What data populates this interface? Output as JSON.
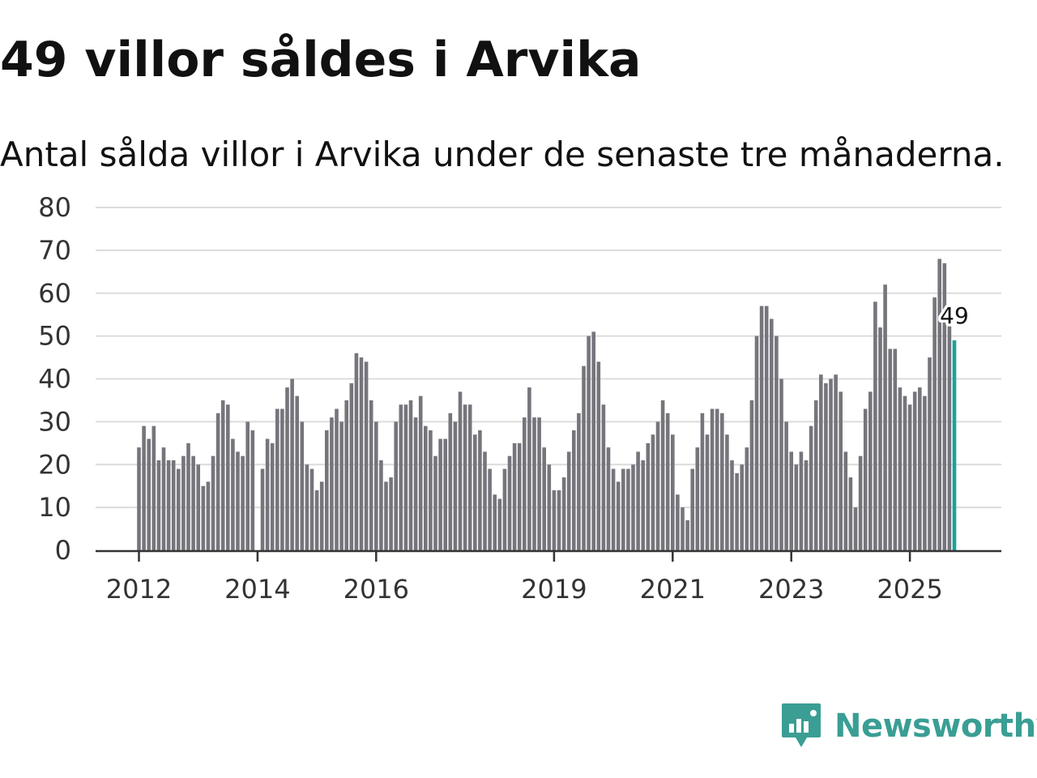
{
  "header": {
    "title": "49 villor såldes i Arvika",
    "subtitle": "Antal sålda villor i Arvika under de senaste tre månaderna."
  },
  "brand": {
    "name": "Newsworthy",
    "icon": "newsworthy-logo-icon",
    "color": "#3a9e94"
  },
  "colors": {
    "bar": "#76757c",
    "highlight": "#1aa39a",
    "grid": "#dcdcdc",
    "axis": "#333333"
  },
  "chart_data": {
    "type": "bar",
    "title": "49 villor såldes i Arvika",
    "subtitle": "Antal sålda villor i Arvika under de senaste tre månaderna.",
    "xlabel": "",
    "ylabel": "",
    "ylim": [
      0,
      80
    ],
    "yticks": [
      "0",
      "10",
      "20",
      "30",
      "40",
      "50",
      "60",
      "70",
      "80"
    ],
    "xticks": [
      "2012",
      "2014",
      "2016",
      "2019",
      "2021",
      "2023",
      "2025"
    ],
    "xtick_indices": [
      0,
      24,
      48,
      84,
      108,
      132,
      156
    ],
    "grid": true,
    "start": "2012-01",
    "frequency": "monthly",
    "values": [
      24,
      29,
      26,
      29,
      21,
      24,
      21,
      21,
      19,
      22,
      25,
      22,
      20,
      15,
      16,
      22,
      32,
      35,
      34,
      26,
      23,
      22,
      30,
      28,
      0,
      19,
      26,
      25,
      33,
      33,
      38,
      40,
      36,
      30,
      20,
      19,
      14,
      16,
      28,
      31,
      33,
      30,
      35,
      39,
      46,
      45,
      44,
      35,
      30,
      21,
      16,
      17,
      30,
      34,
      34,
      35,
      31,
      36,
      29,
      28,
      22,
      26,
      26,
      32,
      30,
      37,
      34,
      34,
      27,
      28,
      23,
      19,
      13,
      12,
      19,
      22,
      25,
      25,
      31,
      38,
      31,
      31,
      24,
      20,
      14,
      14,
      17,
      23,
      28,
      32,
      43,
      50,
      51,
      44,
      34,
      24,
      19,
      16,
      19,
      19,
      20,
      23,
      21,
      25,
      27,
      30,
      35,
      32,
      27,
      13,
      10,
      7,
      19,
      24,
      32,
      27,
      33,
      33,
      32,
      27,
      21,
      18,
      20,
      24,
      35,
      50,
      57,
      57,
      54,
      50,
      40,
      30,
      23,
      20,
      23,
      21,
      29,
      35,
      41,
      39,
      40,
      41,
      37,
      23,
      17,
      10,
      22,
      33,
      37,
      58,
      52,
      62,
      47,
      47,
      38,
      36,
      34,
      37,
      38,
      36,
      45,
      59,
      68,
      67,
      54,
      49
    ],
    "highlight_index": 165,
    "annotation": "49"
  }
}
